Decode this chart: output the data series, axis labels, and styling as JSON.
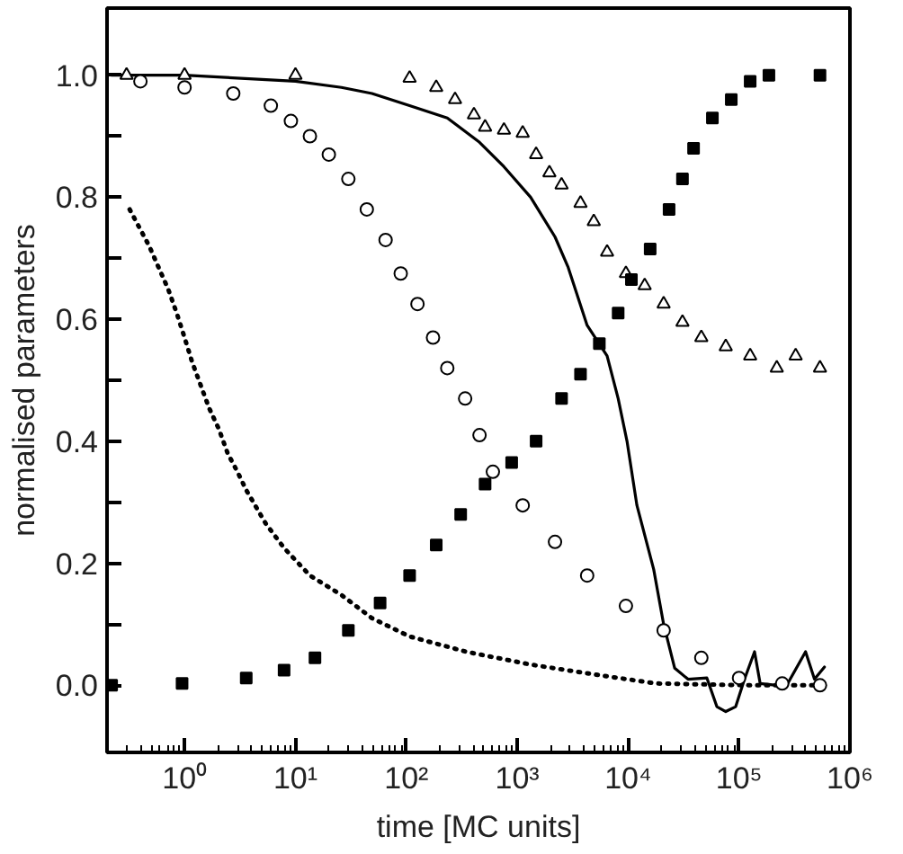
{
  "chart_data": {
    "type": "scatter",
    "xlabel": "time [MC units]",
    "ylabel": "normalised parameters",
    "log": "x",
    "grid": false,
    "xlim": [
      0.2,
      1000000
    ],
    "ylim": [
      -0.11,
      1.11
    ],
    "xticks": [
      {
        "value": 1,
        "label": "10⁰"
      },
      {
        "value": 10,
        "label": "10¹"
      },
      {
        "value": 100,
        "label": "10²"
      },
      {
        "value": 1000,
        "label": "10³"
      },
      {
        "value": 10000,
        "label": "10⁴"
      },
      {
        "value": 100000,
        "label": "10⁵"
      },
      {
        "value": 1000000,
        "label": "10⁶"
      }
    ],
    "yticks": [
      {
        "value": 0,
        "label": "0.0"
      },
      {
        "value": 0.1,
        "label": null
      },
      {
        "value": 0.2,
        "label": "0.2"
      },
      {
        "value": 0.3,
        "label": null
      },
      {
        "value": 0.4,
        "label": "0.4"
      },
      {
        "value": 0.5,
        "label": null
      },
      {
        "value": 0.6,
        "label": "0.6"
      },
      {
        "value": 0.7,
        "label": null
      },
      {
        "value": 0.8,
        "label": "0.8"
      },
      {
        "value": 0.9,
        "label": null
      },
      {
        "value": 1,
        "label": "1.0"
      }
    ],
    "series": [
      {
        "type": "line",
        "line_style": "dotted",
        "color": "#000000",
        "x": [
          0.32,
          0.48,
          0.58,
          0.71,
          0.85,
          1,
          1.17,
          1.41,
          1.66,
          2.04,
          2.45,
          3.0,
          3.6,
          5.4,
          7.9,
          13.5,
          26,
          49,
          107,
          347,
          1320,
          4900,
          17800,
          126000,
          479000
        ],
        "values": [
          0.78,
          0.72,
          0.686,
          0.65,
          0.61,
          0.57,
          0.53,
          0.49,
          0.455,
          0.42,
          0.38,
          0.35,
          0.32,
          0.265,
          0.225,
          0.18,
          0.148,
          0.11,
          0.08,
          0.055,
          0.034,
          0.018,
          0.003,
          0,
          0
        ]
      },
      {
        "marker": "circle",
        "color": "#000000",
        "x": [
          0.4,
          1,
          2.75,
          6,
          9.1,
          13.5,
          20,
          30,
          44,
          65,
          89,
          126,
          174,
          234,
          339,
          457,
          603,
          1120,
          2190,
          4270,
          9550,
          20900,
          45700,
          100000,
          245000,
          537000
        ],
        "values": [
          0.99,
          0.98,
          0.97,
          0.95,
          0.925,
          0.9,
          0.87,
          0.83,
          0.78,
          0.73,
          0.675,
          0.625,
          0.57,
          0.52,
          0.47,
          0.41,
          0.35,
          0.295,
          0.235,
          0.18,
          0.13,
          0.09,
          0.045,
          0.012,
          0.003,
          0
        ]
      },
      {
        "type": "line",
        "line_style": "solid",
        "color": "#000000",
        "x": [
          0.22,
          1,
          10,
          26,
          49,
          107,
          234,
          457,
          759,
          1320,
          2190,
          2880,
          4270,
          6460,
          8130,
          9770,
          12000,
          17000,
          20900,
          26300,
          34700,
          51300,
          63100,
          75900,
          93300,
          112000,
          138000,
          155000,
          219000,
          275000,
          398000,
          479000,
          589000
        ],
        "values": [
          1,
          1,
          0.99,
          0.98,
          0.97,
          0.95,
          0.93,
          0.89,
          0.85,
          0.8,
          0.735,
          0.685,
          0.59,
          0.54,
          0.47,
          0.4,
          0.295,
          0.19,
          0.1,
          0.028,
          0.01,
          0.012,
          -0.035,
          -0.043,
          -0.035,
          0.01,
          0.055,
          0.003,
          0,
          0.003,
          0.055,
          0.01,
          0.03
        ]
      },
      {
        "marker": "triangle",
        "color": "#000000",
        "x": [
          0.3,
          1,
          10,
          107,
          186,
          275,
          407,
          513,
          759,
          1120,
          1480,
          1950,
          2510,
          3720,
          4900,
          6460,
          9550,
          14100,
          20900,
          30900,
          45700,
          75900,
          126000,
          219000,
          324000,
          537000
        ],
        "values": [
          1,
          1,
          1,
          0.995,
          0.98,
          0.96,
          0.935,
          0.915,
          0.91,
          0.905,
          0.87,
          0.84,
          0.82,
          0.79,
          0.76,
          0.71,
          0.675,
          0.655,
          0.625,
          0.595,
          0.57,
          0.555,
          0.54,
          0.52,
          0.54,
          0.52
        ]
      },
      {
        "marker": "square",
        "color": "#000000",
        "x": [
          0.22,
          0.95,
          3.6,
          7.9,
          15,
          30,
          58,
          107,
          186,
          309,
          513,
          891,
          1480,
          2510,
          3720,
          5500,
          8130,
          10700,
          15800,
          23400,
          30900,
          38900,
          57500,
          85100,
          126000,
          186000,
          537000
        ],
        "values": [
          0,
          0.003,
          0.012,
          0.025,
          0.045,
          0.09,
          0.135,
          0.18,
          0.23,
          0.28,
          0.33,
          0.365,
          0.4,
          0.47,
          0.51,
          0.56,
          0.61,
          0.665,
          0.715,
          0.78,
          0.83,
          0.88,
          0.93,
          0.96,
          0.99,
          1,
          1
        ]
      }
    ]
  }
}
